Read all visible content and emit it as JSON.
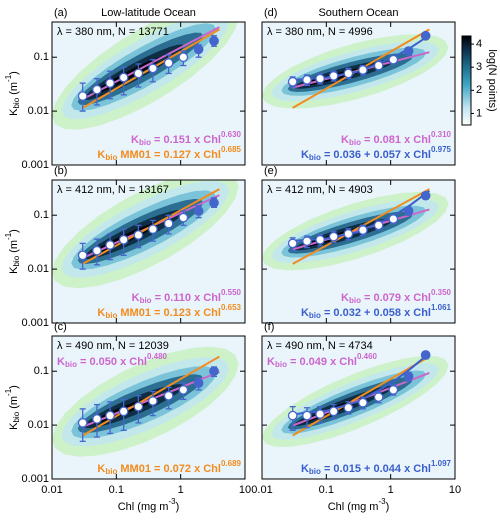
{
  "chart_data": [
    {
      "type": "scatter",
      "label": "(a)",
      "title": "Low-latitude Ocean",
      "annotation": "λ = 380 nm, N = 13771",
      "log": true,
      "xlim": [
        0.01,
        10
      ],
      "xticks": [
        0.01,
        0.1,
        1,
        10
      ],
      "ylim": [
        0.001,
        0.45
      ],
      "yticks": [
        0.001,
        0.01,
        0.1
      ],
      "ylabel": [
        {
          "text": "K"
        },
        {
          "text": "bio",
          "shift": "sub"
        },
        {
          "text": " (m"
        },
        {
          "text": "-1",
          "shift": "sup"
        },
        {
          "text": ")"
        }
      ],
      "points": {
        "color": "#4466cc",
        "x": [
          0.03,
          0.05,
          0.08,
          0.13,
          0.22,
          0.37,
          0.65,
          1.1,
          1.9,
          3.3
        ],
        "y": [
          0.019,
          0.025,
          0.033,
          0.042,
          0.05,
          0.062,
          0.078,
          0.1,
          0.14,
          0.2
        ],
        "ylow": [
          0.01,
          0.013,
          0.017,
          0.02,
          0.028,
          0.035,
          0.05,
          0.07,
          0.1,
          0.16
        ],
        "yhigh": [
          0.033,
          0.04,
          0.055,
          0.065,
          0.075,
          0.09,
          0.11,
          0.13,
          0.17,
          0.25
        ]
      },
      "lines": [
        {
          "color": "#cc66cc",
          "x": [
            0.03,
            4
          ],
          "y": [
            0.0166,
            0.361
          ]
        },
        {
          "color": "#f28c1e",
          "x": [
            0.03,
            4
          ],
          "y": [
            0.0115,
            0.328
          ]
        }
      ],
      "top_labels": [],
      "bottom_labels": [
        {
          "color": "#cc66cc",
          "parts": [
            {
              "text": "K"
            },
            {
              "text": "bio",
              "shift": "sub"
            },
            {
              "text": " = 0.151 x Chl"
            },
            {
              "text": "0.630",
              "shift": "sup"
            }
          ]
        },
        {
          "color": "#f28c1e",
          "parts": [
            {
              "text": "K"
            },
            {
              "text": "bio",
              "shift": "sub"
            },
            {
              "text": " MM01 = 0.127 x Chl"
            },
            {
              "text": "0.685",
              "shift": "sup"
            }
          ]
        }
      ]
    },
    {
      "type": "scatter",
      "label": "(b)",
      "annotation": "λ = 412 nm, N = 13167",
      "log": true,
      "xlim": [
        0.01,
        10
      ],
      "xticks": [
        0.01,
        0.1,
        1,
        10
      ],
      "ylim": [
        0.001,
        0.45
      ],
      "yticks": [
        0.001,
        0.01,
        0.1
      ],
      "ylabel": [
        {
          "text": "K"
        },
        {
          "text": "bio",
          "shift": "sub"
        },
        {
          "text": " (m"
        },
        {
          "text": "-1",
          "shift": "sup"
        },
        {
          "text": ")"
        }
      ],
      "points": {
        "color": "#4466cc",
        "x": [
          0.03,
          0.05,
          0.08,
          0.13,
          0.22,
          0.37,
          0.65,
          1.1,
          1.9,
          3.3
        ],
        "y": [
          0.018,
          0.022,
          0.028,
          0.035,
          0.043,
          0.055,
          0.07,
          0.09,
          0.12,
          0.17
        ],
        "ylow": [
          0.01,
          0.012,
          0.015,
          0.018,
          0.025,
          0.033,
          0.045,
          0.065,
          0.09,
          0.14
        ],
        "yhigh": [
          0.03,
          0.036,
          0.045,
          0.055,
          0.065,
          0.08,
          0.1,
          0.12,
          0.15,
          0.21
        ]
      },
      "lines": [
        {
          "color": "#cc66cc",
          "x": [
            0.03,
            4
          ],
          "y": [
            0.016,
            0.236
          ]
        },
        {
          "color": "#f28c1e",
          "x": [
            0.03,
            4
          ],
          "y": [
            0.0125,
            0.304
          ]
        }
      ],
      "top_labels": [],
      "bottom_labels": [
        {
          "color": "#cc66cc",
          "parts": [
            {
              "text": "K"
            },
            {
              "text": "bio",
              "shift": "sub"
            },
            {
              "text": " = 0.110 x Chl"
            },
            {
              "text": "0.550",
              "shift": "sup"
            }
          ]
        },
        {
          "color": "#f28c1e",
          "parts": [
            {
              "text": "K"
            },
            {
              "text": "bio",
              "shift": "sub"
            },
            {
              "text": " MM01 = 0.123 x Chl"
            },
            {
              "text": "0.653",
              "shift": "sup"
            }
          ]
        }
      ]
    },
    {
      "type": "scatter",
      "label": "(c)",
      "annotation": "λ = 490 nm, N = 12039",
      "log": true,
      "xlim": [
        0.01,
        10
      ],
      "xticks": [
        0.01,
        0.1,
        1,
        10
      ],
      "ylim": [
        0.001,
        0.45
      ],
      "yticks": [
        0.001,
        0.01,
        0.1
      ],
      "ylabel": [
        {
          "text": "K"
        },
        {
          "text": "bio",
          "shift": "sub"
        },
        {
          "text": " (m"
        },
        {
          "text": "-1",
          "shift": "sup"
        },
        {
          "text": ")"
        }
      ],
      "xlabel": [
        {
          "text": "Chl (mg m"
        },
        {
          "text": "-3",
          "shift": "sup"
        },
        {
          "text": ")"
        }
      ],
      "points": {
        "color": "#4466cc",
        "x": [
          0.03,
          0.05,
          0.08,
          0.13,
          0.22,
          0.37,
          0.65,
          1.1,
          1.9,
          3.3
        ],
        "y": [
          0.011,
          0.013,
          0.015,
          0.018,
          0.022,
          0.028,
          0.035,
          0.045,
          0.06,
          0.1
        ],
        "ylow": [
          0.005,
          0.006,
          0.007,
          0.008,
          0.011,
          0.015,
          0.02,
          0.03,
          0.045,
          0.08
        ],
        "yhigh": [
          0.02,
          0.024,
          0.027,
          0.03,
          0.035,
          0.042,
          0.05,
          0.06,
          0.075,
          0.12
        ]
      },
      "lines": [
        {
          "color": "#cc66cc",
          "x": [
            0.03,
            4
          ],
          "y": [
            0.0093,
            0.097
          ]
        },
        {
          "color": "#f28c1e",
          "x": [
            0.03,
            4
          ],
          "y": [
            0.0064,
            0.187
          ]
        }
      ],
      "top_labels": [
        {
          "color": "#cc66cc",
          "parts": [
            {
              "text": "K"
            },
            {
              "text": "bio",
              "shift": "sub"
            },
            {
              "text": " = 0.050 x Chl"
            },
            {
              "text": "0.480",
              "shift": "sup"
            }
          ]
        }
      ],
      "bottom_labels": [
        {
          "color": "#f28c1e",
          "parts": [
            {
              "text": "K"
            },
            {
              "text": "bio",
              "shift": "sub"
            },
            {
              "text": " MM01 = 0.072 x Chl"
            },
            {
              "text": "0.689",
              "shift": "sup"
            }
          ]
        }
      ]
    },
    {
      "type": "scatter",
      "label": "(d)",
      "title": "Southern Ocean",
      "annotation": "λ = 380 nm, N = 4996",
      "log": true,
      "xlim": [
        0.01,
        10
      ],
      "xticks": [
        0.01,
        0.1,
        1,
        10
      ],
      "ylim": [
        0.001,
        0.45
      ],
      "yticks": [
        0.001,
        0.01,
        0.1
      ],
      "points": {
        "color": "#4466cc",
        "x": [
          0.03,
          0.05,
          0.08,
          0.13,
          0.22,
          0.37,
          0.65,
          1.1,
          1.9,
          3.5
        ],
        "y": [
          0.035,
          0.038,
          0.04,
          0.045,
          0.05,
          0.058,
          0.07,
          0.09,
          0.13,
          0.25
        ],
        "ylow": [
          0.028,
          0.03,
          0.032,
          0.036,
          0.04,
          0.047,
          0.058,
          0.075,
          0.11,
          0.22
        ],
        "yhigh": [
          0.043,
          0.047,
          0.05,
          0.055,
          0.062,
          0.07,
          0.085,
          0.105,
          0.15,
          0.28
        ]
      },
      "lines": [
        {
          "color": "#cc66cc",
          "x": [
            0.03,
            4
          ],
          "y": [
            0.0273,
            0.124
          ]
        },
        {
          "color": "#f28c1e",
          "x": [
            0.03,
            4
          ],
          "y": [
            0.0115,
            0.328
          ]
        },
        {
          "color": "#3a5fcd",
          "x": [
            0.03,
            0.1,
            0.3,
            1,
            2,
            4
          ],
          "y": [
            0.0379,
            0.042,
            0.0537,
            0.093,
            0.148,
            0.256
          ]
        }
      ],
      "top_labels": [],
      "bottom_labels": [
        {
          "color": "#cc66cc",
          "parts": [
            {
              "text": "K"
            },
            {
              "text": "bio",
              "shift": "sub"
            },
            {
              "text": " = 0.081 x Chl"
            },
            {
              "text": "0.310",
              "shift": "sup"
            }
          ]
        },
        {
          "color": "#3a5fcd",
          "parts": [
            {
              "text": "K"
            },
            {
              "text": "bio",
              "shift": "sub"
            },
            {
              "text": " = 0.036 + 0.057 x Chl"
            },
            {
              "text": "0.975",
              "shift": "sup"
            }
          ]
        }
      ]
    },
    {
      "type": "scatter",
      "label": "(e)",
      "annotation": "λ = 412 nm, N = 4903",
      "log": true,
      "xlim": [
        0.01,
        10
      ],
      "xticks": [
        0.01,
        0.1,
        1,
        10
      ],
      "ylim": [
        0.001,
        0.45
      ],
      "yticks": [
        0.001,
        0.01,
        0.1
      ],
      "points": {
        "color": "#4466cc",
        "x": [
          0.03,
          0.05,
          0.08,
          0.13,
          0.22,
          0.37,
          0.65,
          1.1,
          1.9,
          3.5
        ],
        "y": [
          0.03,
          0.033,
          0.035,
          0.04,
          0.045,
          0.053,
          0.065,
          0.085,
          0.12,
          0.23
        ],
        "ylow": [
          0.022,
          0.025,
          0.027,
          0.031,
          0.035,
          0.042,
          0.053,
          0.07,
          0.1,
          0.2
        ],
        "yhigh": [
          0.038,
          0.041,
          0.044,
          0.05,
          0.056,
          0.065,
          0.078,
          0.1,
          0.14,
          0.26
        ]
      },
      "lines": [
        {
          "color": "#cc66cc",
          "x": [
            0.03,
            4
          ],
          "y": [
            0.0232,
            0.128
          ]
        },
        {
          "color": "#f28c1e",
          "x": [
            0.03,
            4
          ],
          "y": [
            0.0125,
            0.304
          ]
        },
        {
          "color": "#3a5fcd",
          "x": [
            0.03,
            0.1,
            0.3,
            1,
            2,
            4
          ],
          "y": [
            0.0334,
            0.037,
            0.0482,
            0.09,
            0.153,
            0.284
          ]
        }
      ],
      "top_labels": [],
      "bottom_labels": [
        {
          "color": "#cc66cc",
          "parts": [
            {
              "text": "K"
            },
            {
              "text": "bio",
              "shift": "sub"
            },
            {
              "text": " = 0.079 x Chl"
            },
            {
              "text": "0.350",
              "shift": "sup"
            }
          ]
        },
        {
          "color": "#3a5fcd",
          "parts": [
            {
              "text": "K"
            },
            {
              "text": "bio",
              "shift": "sub"
            },
            {
              "text": " = 0.032 + 0.058 x Chl"
            },
            {
              "text": "1.061",
              "shift": "sup"
            }
          ]
        }
      ]
    },
    {
      "type": "scatter",
      "label": "(f)",
      "annotation": "λ = 490 nm, N = 4734",
      "log": true,
      "xlim": [
        0.01,
        10
      ],
      "xticks": [
        0.01,
        0.1,
        1,
        10
      ],
      "ylim": [
        0.001,
        0.45
      ],
      "yticks": [
        0.001,
        0.01,
        0.1
      ],
      "xlabel": [
        {
          "text": "Chl (mg m"
        },
        {
          "text": "-3",
          "shift": "sup"
        },
        {
          "text": ")"
        }
      ],
      "points": {
        "color": "#4466cc",
        "x": [
          0.03,
          0.05,
          0.08,
          0.13,
          0.22,
          0.37,
          0.65,
          1.1,
          1.9,
          3.5
        ],
        "y": [
          0.015,
          0.015,
          0.016,
          0.018,
          0.021,
          0.026,
          0.033,
          0.045,
          0.08,
          0.2
        ],
        "ylow": [
          0.008,
          0.009,
          0.011,
          0.013,
          0.016,
          0.02,
          0.026,
          0.036,
          0.065,
          0.17
        ],
        "yhigh": [
          0.022,
          0.021,
          0.022,
          0.024,
          0.027,
          0.033,
          0.041,
          0.055,
          0.095,
          0.23
        ]
      },
      "lines": [
        {
          "color": "#cc66cc",
          "x": [
            0.03,
            4
          ],
          "y": [
            0.0098,
            0.093
          ]
        },
        {
          "color": "#f28c1e",
          "x": [
            0.03,
            4
          ],
          "y": [
            0.0064,
            0.187
          ]
        },
        {
          "color": "#3a5fcd",
          "x": [
            0.03,
            0.1,
            0.3,
            1,
            2,
            4
          ],
          "y": [
            0.0159,
            0.0185,
            0.0267,
            0.059,
            0.109,
            0.216
          ]
        }
      ],
      "top_labels": [
        {
          "color": "#cc66cc",
          "parts": [
            {
              "text": "K"
            },
            {
              "text": "bio",
              "shift": "sub"
            },
            {
              "text": " = 0.049 x Chl"
            },
            {
              "text": "0.460",
              "shift": "sup"
            }
          ]
        }
      ],
      "bottom_labels": [
        {
          "color": "#3a5fcd",
          "parts": [
            {
              "text": "K"
            },
            {
              "text": "bio",
              "shift": "sub"
            },
            {
              "text": " = 0.015 + 0.044 x Chl"
            },
            {
              "text": "1.097",
              "shift": "sup"
            }
          ]
        }
      ]
    },
    {
      "type": "colorbar",
      "label": "log(N points)",
      "lim": [
        0.5,
        4.35
      ],
      "ticks": [
        1,
        2,
        3,
        4
      ]
    }
  ]
}
